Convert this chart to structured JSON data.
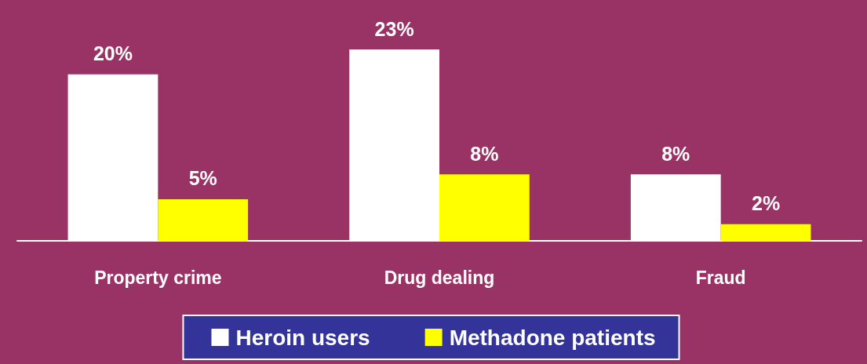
{
  "chart_data": {
    "type": "bar",
    "categories": [
      "Property crime",
      "Drug dealing",
      "Fraud"
    ],
    "series": [
      {
        "name": "Heroin users",
        "color": "#ffffff",
        "values": [
          20,
          23,
          8
        ],
        "value_labels": [
          "20%",
          "23%",
          "8%"
        ]
      },
      {
        "name": "Methadone patients",
        "color": "#ffff00",
        "values": [
          5,
          8,
          2
        ],
        "value_labels": [
          "5%",
          "8%",
          "2%"
        ]
      }
    ],
    "grid": false,
    "legend": "bottom"
  }
}
